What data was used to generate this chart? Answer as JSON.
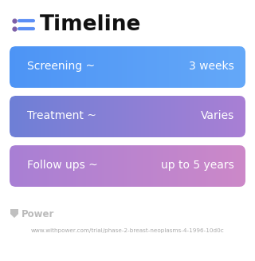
{
  "title": "Timeline",
  "background_color": "#ffffff",
  "title_fontsize": 19,
  "title_color": "#111111",
  "icon_color_dot": "#7b5ea7",
  "icon_color_line": "#5b8ef5",
  "rows": [
    {
      "label": "Screening ~",
      "value": "3 weeks",
      "color_left": "#4d94f5",
      "color_right": "#64a8f8"
    },
    {
      "label": "Treatment ~",
      "value": "Varies",
      "color_left": "#6e7fd6",
      "color_right": "#a87fd4"
    },
    {
      "label": "Follow ups ~",
      "value": "up to 5 years",
      "color_left": "#a87fd4",
      "color_right": "#cc88c8"
    }
  ],
  "row_text_color": "#ffffff",
  "row_label_fontsize": 10,
  "row_value_fontsize": 10,
  "footer_logo_text": "Power",
  "footer_url": "www.withpower.com/trial/phase-2-breast-neoplasms-4-1996-10d0c",
  "footer_color": "#aaaaaa",
  "footer_fontsize": 5.2
}
